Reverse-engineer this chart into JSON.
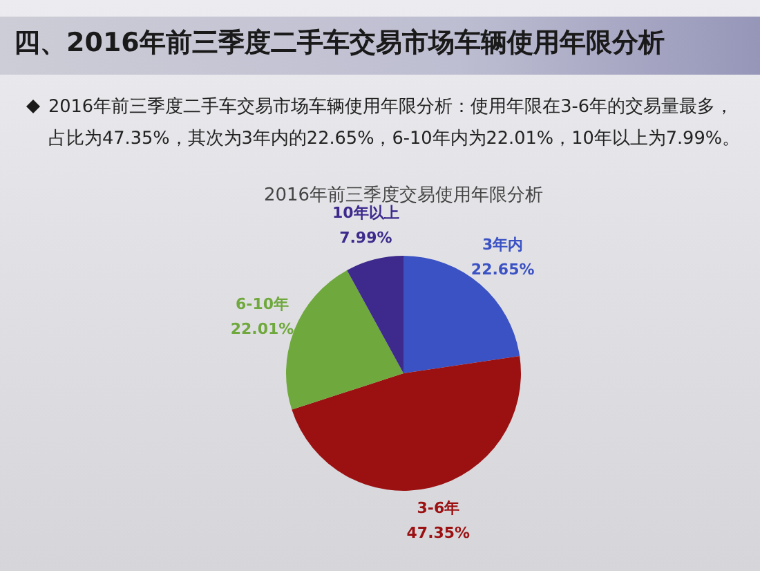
{
  "chart_data": {
    "type": "pie",
    "title": "2016年前三季度交易使用年限分析",
    "annotations": [
      "四、2016年前三季度二手车交易市场车辆使用年限分析",
      "2016年前三季度二手车交易市场车辆使用年限分析：使用年限在3-6年的交易量最多，占比为47.35%，其次为3年内的22.65%，6-10年内为22.01%，10年以上为7.99%。"
    ],
    "categories": [
      "3年内",
      "3-6年",
      "6-10年",
      "10年以上"
    ],
    "values": [
      22.65,
      47.35,
      22.01,
      7.99
    ],
    "colors": [
      "#3b52c4",
      "#9b1112",
      "#6fa83c",
      "#3d2a8c"
    ],
    "value_labels": [
      "22.65%",
      "47.35%",
      "22.01%",
      "7.99%"
    ],
    "legend": false
  }
}
